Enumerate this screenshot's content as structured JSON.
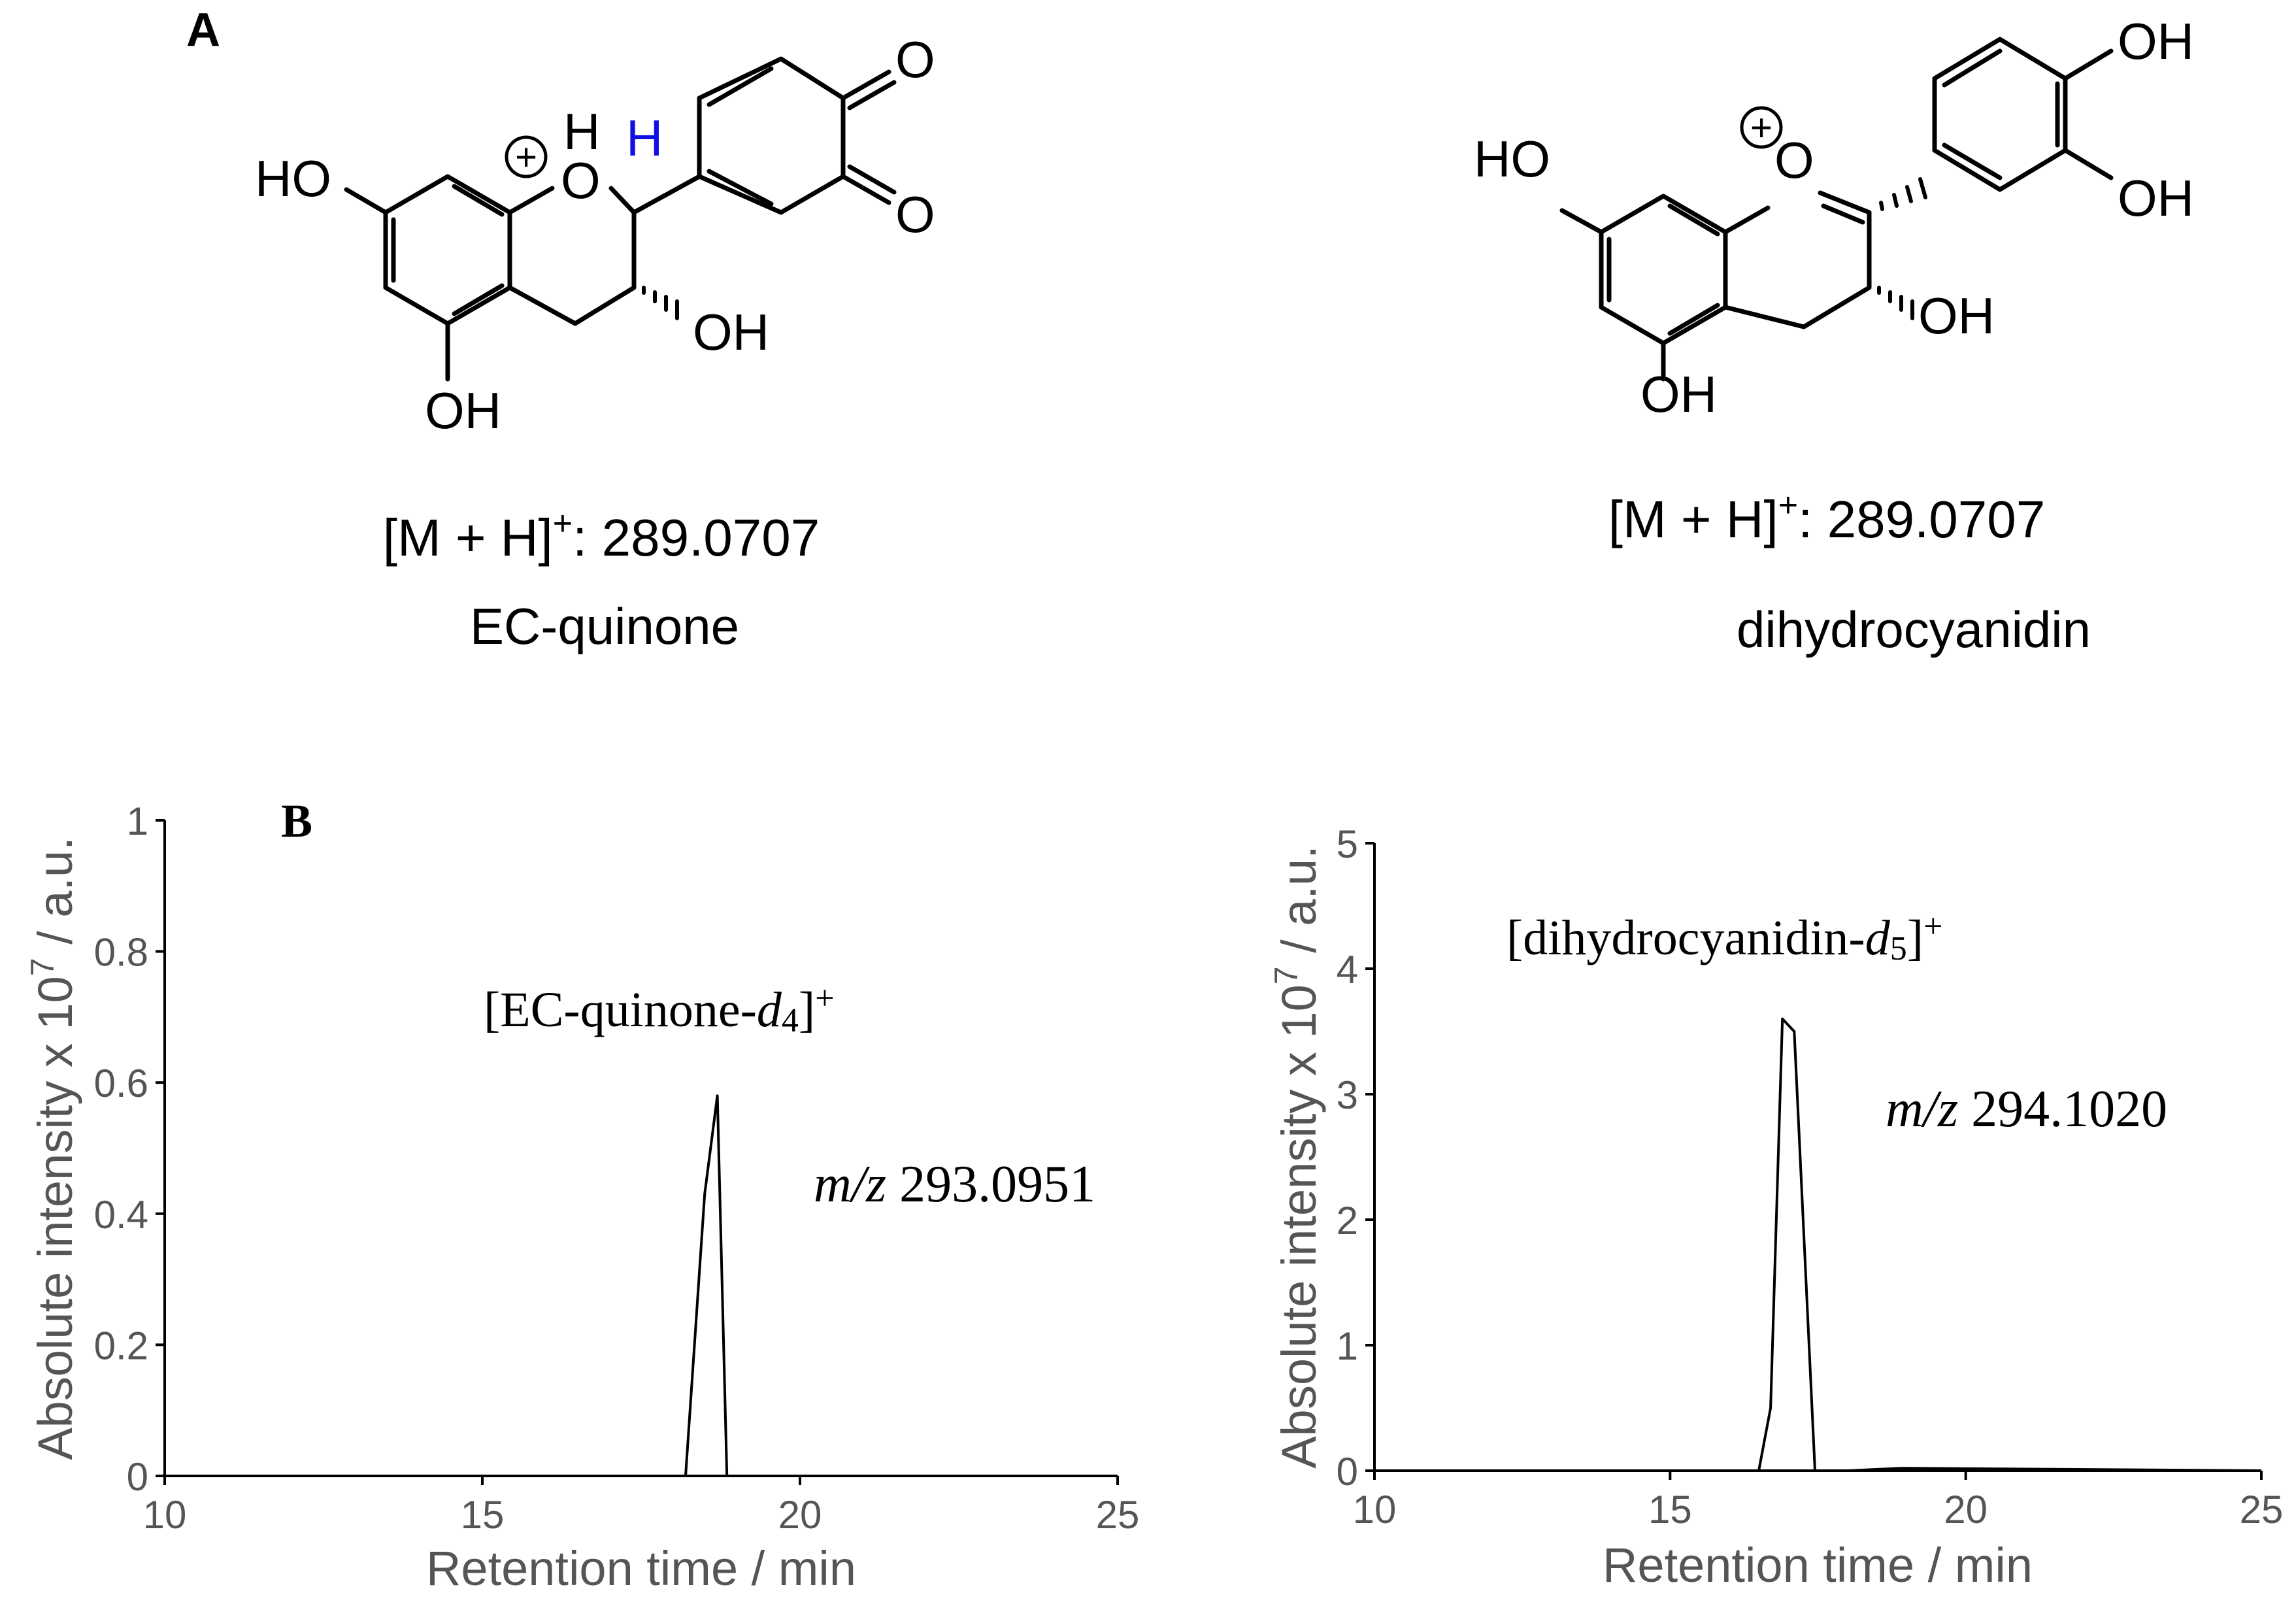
{
  "panel_a": {
    "label": "A",
    "compounds": [
      {
        "name": "EC-quinone",
        "mass_label": "[M + H]",
        "mass_sup": "+",
        "mass_value": ": 289.0707",
        "atoms": {
          "ho_7": "HO",
          "o_ring": "O",
          "h_o": "H",
          "h_2": "H",
          "oh_3": "OH",
          "oh_5": "OH",
          "o_3p": "O",
          "o_4p": "O",
          "charge": "+"
        },
        "colors": {
          "highlight_h": "#1010e6"
        }
      },
      {
        "name": "dihydrocyanidin",
        "mass_label": "[M + H]",
        "mass_sup": "+",
        "mass_value": ": 289.0707",
        "atoms": {
          "ho_7": "HO",
          "o_ring": "O",
          "oh_3": "OH",
          "oh_5": "OH",
          "oh_3p": "OH",
          "oh_4p": "OH",
          "charge": "+"
        }
      }
    ]
  },
  "panel_b": {
    "label": "B"
  },
  "chart_data": [
    {
      "type": "line",
      "title": "",
      "xlabel": "Retention time / min",
      "ylabel_main": "Absolute intensity x 10",
      "ylabel_exp": "7",
      "ylabel_unit": " / a.u.",
      "xlim": [
        10,
        25
      ],
      "ylim": [
        0,
        1
      ],
      "xticks": [
        "10",
        "15",
        "20",
        "25"
      ],
      "yticks": [
        "0",
        "0.2",
        "0.4",
        "0.6",
        "0.8",
        "1"
      ],
      "annotation": {
        "pre": "[EC-quinone-",
        "italic": "d",
        "sub": "4",
        "post": "]",
        "sup": "+"
      },
      "mz": {
        "italic": "m/z",
        "value": " 293.0951"
      },
      "grid": false,
      "series": [
        {
          "x": [
            10,
            18.2,
            18.5,
            18.7,
            18.85,
            25
          ],
          "y": [
            0,
            0,
            0.43,
            0.58,
            0,
            0
          ]
        }
      ]
    },
    {
      "type": "line",
      "title": "",
      "xlabel": "Retention time / min",
      "ylabel_main": "Absolute intensity x 10",
      "ylabel_exp": "7",
      "ylabel_unit": " / a.u.",
      "xlim": [
        10,
        25
      ],
      "ylim": [
        0,
        5
      ],
      "xticks": [
        "10",
        "15",
        "20",
        "25"
      ],
      "yticks": [
        "0",
        "1",
        "2",
        "3",
        "4",
        "5"
      ],
      "annotation": {
        "pre": "[dihydrocyanidin-",
        "italic": "d",
        "sub": "5",
        "post": "]",
        "sup": "+"
      },
      "mz": {
        "italic": "m/z",
        "value": " 294.1020"
      },
      "grid": false,
      "series": [
        {
          "x": [
            10,
            16.5,
            16.7,
            16.9,
            17.1,
            17.45,
            18,
            18.9,
            25
          ],
          "y": [
            0,
            0,
            0.5,
            3.6,
            3.5,
            0,
            0,
            0.02,
            0
          ]
        }
      ]
    }
  ]
}
